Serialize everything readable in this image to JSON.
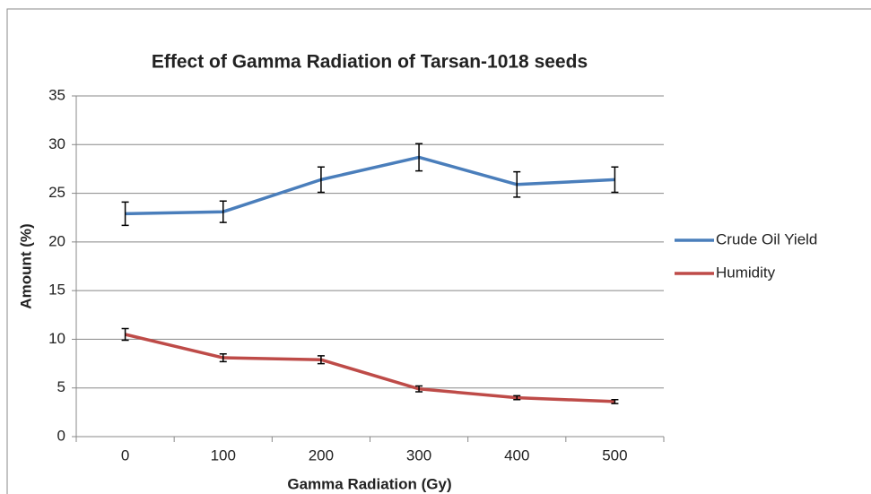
{
  "chart_data": {
    "type": "line",
    "title": "Effect of Gamma Radiation of Tarsan-1018 seeds",
    "x_label": "Gamma Radiation (Gy)",
    "y_label": "Amount (%)",
    "categories": [
      "0",
      "100",
      "200",
      "300",
      "400",
      "500"
    ],
    "series": [
      {
        "name": "Crude Oil Yield",
        "color": "#4a7ebb",
        "values": [
          22.9,
          23.1,
          26.4,
          28.7,
          25.9,
          26.4
        ],
        "errors": [
          1.2,
          1.1,
          1.3,
          1.4,
          1.3,
          1.3
        ]
      },
      {
        "name": "Humidity",
        "color": "#be4b48",
        "values": [
          10.5,
          8.1,
          7.9,
          4.9,
          4.0,
          3.6
        ],
        "errors": [
          0.6,
          0.4,
          0.4,
          0.3,
          0.2,
          0.2
        ]
      }
    ],
    "ylim": [
      0,
      35
    ],
    "yticks": [
      0,
      5,
      10,
      15,
      20,
      25,
      30,
      35
    ],
    "grid": true,
    "legend": "right"
  }
}
